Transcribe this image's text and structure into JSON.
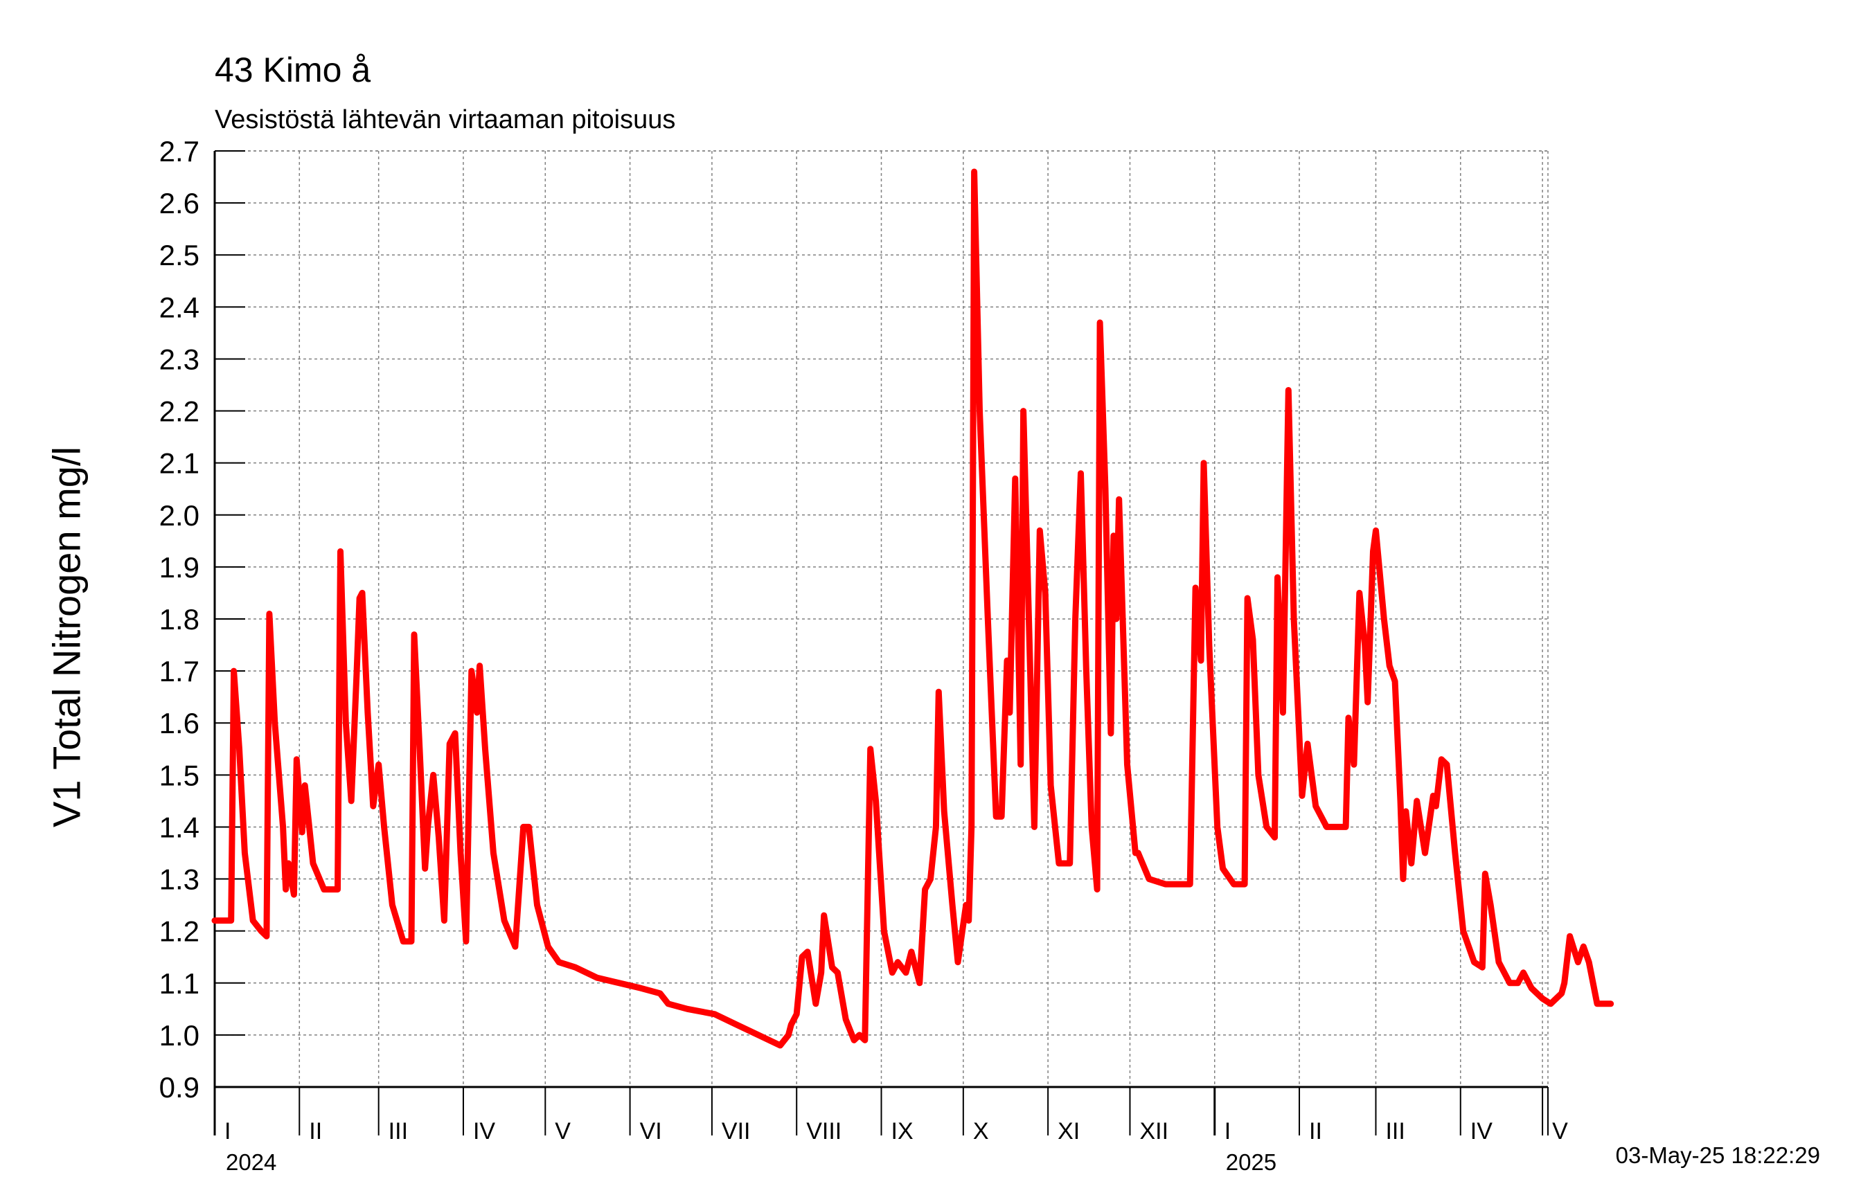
{
  "chart_data": {
    "type": "line",
    "title": "43 Kimo å",
    "subtitle": "Vesistöstä lähtevän virtaaman pitoisuus",
    "ylabel": "V1 Total Nitrogen mg/l",
    "ylim": [
      0.9,
      2.7
    ],
    "yticks": [
      "0.9",
      "1.0",
      "1.1",
      "1.2",
      "1.3",
      "1.4",
      "1.5",
      "1.6",
      "1.7",
      "1.8",
      "1.9",
      "2.0",
      "2.1",
      "2.2",
      "2.3",
      "2.4",
      "2.5",
      "2.6",
      "2.7"
    ],
    "xlim": [
      "2024-01-01",
      "2025-05-03"
    ],
    "month_labels": [
      "I",
      "II",
      "III",
      "IV",
      "V",
      "VI",
      "VII",
      "VIII",
      "IX",
      "X",
      "XI",
      "XII",
      "I",
      "II",
      "III",
      "IV",
      "V"
    ],
    "year_labels": [
      {
        "label": "2024",
        "date": "2024-01-01"
      },
      {
        "label": "2025",
        "date": "2025-01-01"
      }
    ],
    "grid": true,
    "line_color": "#ff0000",
    "series": [
      {
        "values": [
          [
            "2024-01-01",
            1.22
          ],
          [
            "2024-01-07",
            1.22
          ],
          [
            "2024-01-08",
            1.7
          ],
          [
            "2024-01-10",
            1.55
          ],
          [
            "2024-01-12",
            1.35
          ],
          [
            "2024-01-15",
            1.22
          ],
          [
            "2024-01-18",
            1.2
          ],
          [
            "2024-01-20",
            1.19
          ],
          [
            "2024-01-21",
            1.81
          ],
          [
            "2024-01-23",
            1.6
          ],
          [
            "2024-01-26",
            1.4
          ],
          [
            "2024-01-27",
            1.28
          ],
          [
            "2024-01-28",
            1.33
          ],
          [
            "2024-01-30",
            1.27
          ],
          [
            "2024-01-31",
            1.53
          ],
          [
            "2024-02-02",
            1.39
          ],
          [
            "2024-02-03",
            1.48
          ],
          [
            "2024-02-06",
            1.33
          ],
          [
            "2024-02-10",
            1.28
          ],
          [
            "2024-02-15",
            1.28
          ],
          [
            "2024-02-16",
            1.93
          ],
          [
            "2024-02-18",
            1.6
          ],
          [
            "2024-02-20",
            1.45
          ],
          [
            "2024-02-22",
            1.7
          ],
          [
            "2024-02-23",
            1.84
          ],
          [
            "2024-02-24",
            1.85
          ],
          [
            "2024-02-26",
            1.62
          ],
          [
            "2024-02-28",
            1.44
          ],
          [
            "2024-03-01",
            1.52
          ],
          [
            "2024-03-03",
            1.4
          ],
          [
            "2024-03-06",
            1.25
          ],
          [
            "2024-03-10",
            1.18
          ],
          [
            "2024-03-13",
            1.18
          ],
          [
            "2024-03-14",
            1.77
          ],
          [
            "2024-03-16",
            1.55
          ],
          [
            "2024-03-18",
            1.32
          ],
          [
            "2024-03-19",
            1.4
          ],
          [
            "2024-03-21",
            1.5
          ],
          [
            "2024-03-23",
            1.38
          ],
          [
            "2024-03-25",
            1.22
          ],
          [
            "2024-03-27",
            1.56
          ],
          [
            "2024-03-29",
            1.58
          ],
          [
            "2024-03-31",
            1.35
          ],
          [
            "2024-04-02",
            1.18
          ],
          [
            "2024-04-04",
            1.7
          ],
          [
            "2024-04-06",
            1.62
          ],
          [
            "2024-04-07",
            1.71
          ],
          [
            "2024-04-09",
            1.55
          ],
          [
            "2024-04-12",
            1.35
          ],
          [
            "2024-04-16",
            1.22
          ],
          [
            "2024-04-20",
            1.17
          ],
          [
            "2024-04-23",
            1.4
          ],
          [
            "2024-04-25",
            1.4
          ],
          [
            "2024-04-28",
            1.25
          ],
          [
            "2024-05-02",
            1.17
          ],
          [
            "2024-05-06",
            1.14
          ],
          [
            "2024-05-12",
            1.13
          ],
          [
            "2024-05-20",
            1.11
          ],
          [
            "2024-05-28",
            1.1
          ],
          [
            "2024-06-05",
            1.09
          ],
          [
            "2024-06-12",
            1.08
          ],
          [
            "2024-06-15",
            1.06
          ],
          [
            "2024-06-22",
            1.05
          ],
          [
            "2024-07-02",
            1.04
          ],
          [
            "2024-07-10",
            1.02
          ],
          [
            "2024-07-18",
            1.0
          ],
          [
            "2024-07-26",
            0.98
          ],
          [
            "2024-07-29",
            1.0
          ],
          [
            "2024-07-30",
            1.02
          ],
          [
            "2024-08-01",
            1.04
          ],
          [
            "2024-08-03",
            1.15
          ],
          [
            "2024-08-05",
            1.16
          ],
          [
            "2024-08-08",
            1.06
          ],
          [
            "2024-08-10",
            1.12
          ],
          [
            "2024-08-11",
            1.23
          ],
          [
            "2024-08-14",
            1.13
          ],
          [
            "2024-08-16",
            1.12
          ],
          [
            "2024-08-19",
            1.03
          ],
          [
            "2024-08-22",
            0.99
          ],
          [
            "2024-08-24",
            1.0
          ],
          [
            "2024-08-26",
            0.99
          ],
          [
            "2024-08-28",
            1.55
          ],
          [
            "2024-08-30",
            1.45
          ],
          [
            "2024-09-02",
            1.2
          ],
          [
            "2024-09-05",
            1.12
          ],
          [
            "2024-09-07",
            1.14
          ],
          [
            "2024-09-10",
            1.12
          ],
          [
            "2024-09-12",
            1.16
          ],
          [
            "2024-09-15",
            1.1
          ],
          [
            "2024-09-17",
            1.28
          ],
          [
            "2024-09-19",
            1.3
          ],
          [
            "2024-09-21",
            1.4
          ],
          [
            "2024-09-22",
            1.66
          ],
          [
            "2024-09-24",
            1.43
          ],
          [
            "2024-09-27",
            1.25
          ],
          [
            "2024-09-29",
            1.14
          ],
          [
            "2024-10-02",
            1.25
          ],
          [
            "2024-10-03",
            1.22
          ],
          [
            "2024-10-04",
            1.4
          ],
          [
            "2024-10-05",
            2.66
          ],
          [
            "2024-10-07",
            2.2
          ],
          [
            "2024-10-10",
            1.8
          ],
          [
            "2024-10-13",
            1.42
          ],
          [
            "2024-10-15",
            1.42
          ],
          [
            "2024-10-17",
            1.72
          ],
          [
            "2024-10-18",
            1.62
          ],
          [
            "2024-10-20",
            2.07
          ],
          [
            "2024-10-22",
            1.52
          ],
          [
            "2024-10-23",
            2.2
          ],
          [
            "2024-10-25",
            1.8
          ],
          [
            "2024-10-27",
            1.4
          ],
          [
            "2024-10-29",
            1.97
          ],
          [
            "2024-10-31",
            1.85
          ],
          [
            "2024-11-02",
            1.48
          ],
          [
            "2024-11-05",
            1.33
          ],
          [
            "2024-11-09",
            1.33
          ],
          [
            "2024-11-11",
            1.8
          ],
          [
            "2024-11-13",
            2.08
          ],
          [
            "2024-11-15",
            1.7
          ],
          [
            "2024-11-17",
            1.4
          ],
          [
            "2024-11-19",
            1.28
          ],
          [
            "2024-11-20",
            2.37
          ],
          [
            "2024-11-22",
            2.05
          ],
          [
            "2024-11-24",
            1.58
          ],
          [
            "2024-11-25",
            1.96
          ],
          [
            "2024-11-26",
            1.8
          ],
          [
            "2024-11-27",
            2.03
          ],
          [
            "2024-11-30",
            1.52
          ],
          [
            "2024-12-03",
            1.35
          ],
          [
            "2024-12-04",
            1.35
          ],
          [
            "2024-12-08",
            1.3
          ],
          [
            "2024-12-14",
            1.29
          ],
          [
            "2024-12-22",
            1.29
          ],
          [
            "2024-12-23",
            1.29
          ],
          [
            "2024-12-25",
            1.86
          ],
          [
            "2024-12-27",
            1.72
          ],
          [
            "2024-12-28",
            2.1
          ],
          [
            "2024-12-30",
            1.75
          ],
          [
            "2025-01-02",
            1.4
          ],
          [
            "2025-01-04",
            1.32
          ],
          [
            "2025-01-08",
            1.29
          ],
          [
            "2025-01-12",
            1.29
          ],
          [
            "2025-01-13",
            1.84
          ],
          [
            "2025-01-15",
            1.76
          ],
          [
            "2025-01-17",
            1.5
          ],
          [
            "2025-01-20",
            1.4
          ],
          [
            "2025-01-23",
            1.38
          ],
          [
            "2025-01-24",
            1.88
          ],
          [
            "2025-01-26",
            1.62
          ],
          [
            "2025-01-28",
            2.24
          ],
          [
            "2025-01-30",
            1.8
          ],
          [
            "2025-02-02",
            1.46
          ],
          [
            "2025-02-04",
            1.56
          ],
          [
            "2025-02-07",
            1.44
          ],
          [
            "2025-02-11",
            1.4
          ],
          [
            "2025-02-18",
            1.4
          ],
          [
            "2025-02-19",
            1.61
          ],
          [
            "2025-02-21",
            1.52
          ],
          [
            "2025-02-23",
            1.85
          ],
          [
            "2025-02-25",
            1.75
          ],
          [
            "2025-02-26",
            1.64
          ],
          [
            "2025-02-28",
            1.93
          ],
          [
            "2025-03-01",
            1.97
          ],
          [
            "2025-03-04",
            1.8
          ],
          [
            "2025-03-06",
            1.71
          ],
          [
            "2025-03-08",
            1.68
          ],
          [
            "2025-03-10",
            1.45
          ],
          [
            "2025-03-11",
            1.3
          ],
          [
            "2025-03-12",
            1.43
          ],
          [
            "2025-03-14",
            1.33
          ],
          [
            "2025-03-16",
            1.45
          ],
          [
            "2025-03-19",
            1.35
          ],
          [
            "2025-03-22",
            1.46
          ],
          [
            "2025-03-23",
            1.44
          ],
          [
            "2025-03-25",
            1.53
          ],
          [
            "2025-03-27",
            1.52
          ],
          [
            "2025-03-30",
            1.35
          ],
          [
            "2025-04-02",
            1.2
          ],
          [
            "2025-04-06",
            1.14
          ],
          [
            "2025-04-09",
            1.13
          ],
          [
            "2025-04-10",
            1.31
          ],
          [
            "2025-04-12",
            1.25
          ],
          [
            "2025-04-15",
            1.14
          ],
          [
            "2025-04-19",
            1.1
          ],
          [
            "2025-04-22",
            1.1
          ],
          [
            "2025-04-24",
            1.12
          ],
          [
            "2025-04-27",
            1.09
          ],
          [
            "2025-05-01",
            1.07
          ],
          [
            "2025-05-04",
            1.06
          ],
          [
            "2025-05-06",
            1.07
          ],
          [
            "2025-05-08",
            1.08
          ],
          [
            "2025-05-09",
            1.1
          ],
          [
            "2025-05-11",
            1.19
          ],
          [
            "2025-05-14",
            1.14
          ],
          [
            "2025-05-16",
            1.17
          ],
          [
            "2025-05-18",
            1.14
          ],
          [
            "2025-05-21",
            1.06
          ],
          [
            "2025-05-24",
            1.06
          ],
          [
            "2025-05-26",
            1.06
          ]
        ]
      }
    ]
  },
  "timestamp": "03-May-25 18:22:29"
}
